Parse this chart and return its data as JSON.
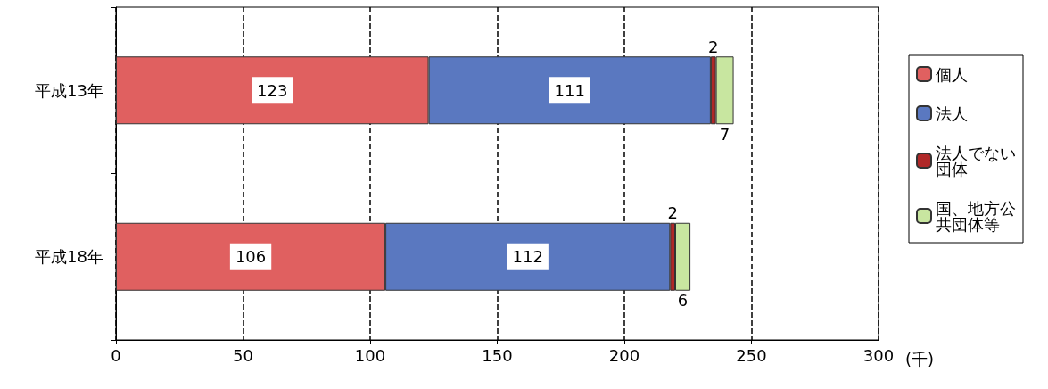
{
  "chart_data": {
    "type": "bar",
    "orientation": "horizontal",
    "stacked": true,
    "categories": [
      "平成13年",
      "平成18年"
    ],
    "series": [
      {
        "name": "個人",
        "color": "#e06060",
        "values": [
          123,
          106
        ]
      },
      {
        "name": "法人",
        "color": "#5a78c0",
        "values": [
          111,
          112
        ]
      },
      {
        "name": "法人でない団体",
        "color": "#b02828",
        "values": [
          2,
          2
        ]
      },
      {
        "name": "国、地方公共団体等",
        "color": "#c8e6a0",
        "values": [
          7,
          6
        ]
      }
    ],
    "xlim": [
      0,
      300
    ],
    "xticks": [
      0,
      50,
      100,
      150,
      200,
      250,
      300
    ],
    "xlabel": "(千)",
    "grid": "x",
    "legend": "right",
    "data_labels": true
  }
}
